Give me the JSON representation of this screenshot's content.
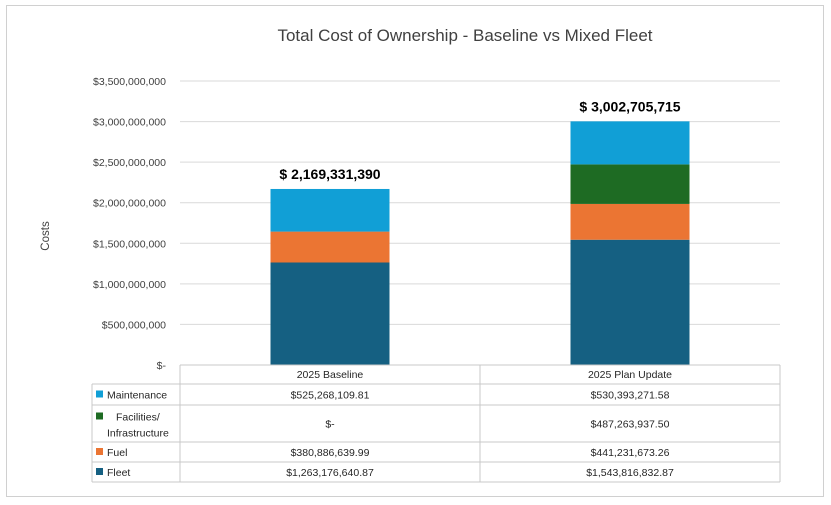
{
  "chart_data": {
    "type": "bar",
    "stacked": true,
    "title": "Total Cost of Ownership - Baseline vs Mixed Fleet",
    "xlabel": "",
    "ylabel": "Costs",
    "ylim": [
      0,
      3500000000
    ],
    "y_ticks": [
      0,
      500000000,
      1000000000,
      1500000000,
      2000000000,
      2500000000,
      3000000000,
      3500000000
    ],
    "y_tick_labels": [
      "$-",
      "$500,000,000",
      "$1,000,000,000",
      "$1,500,000,000",
      "$2,000,000,000",
      "$2,500,000,000",
      "$3,000,000,000",
      "$3,500,000,000"
    ],
    "grid": true,
    "categories": [
      "2025 Baseline",
      "2025 Plan Update"
    ],
    "totals": [
      "$  2,169,331,390",
      "$  3,002,705,715"
    ],
    "series": [
      {
        "name": "Maintenance",
        "color": "#119fd6",
        "values": [
          525268109.81,
          530393271.58
        ],
        "labels": [
          "$525,268,109.81",
          "$530,393,271.58"
        ]
      },
      {
        "name": "Facilities/ Infrastructure",
        "name_lines": [
          "Facilities/",
          "Infrastructure"
        ],
        "color": "#1e6b23",
        "values": [
          0,
          487263937.5
        ],
        "labels": [
          "$-",
          "$487,263,937.50"
        ]
      },
      {
        "name": "Fuel",
        "color": "#eb7533",
        "values": [
          380886639.99,
          441231673.26
        ],
        "labels": [
          "$380,886,639.99",
          "$441,231,673.26"
        ]
      },
      {
        "name": "Fleet",
        "color": "#156082",
        "values": [
          1263176640.87,
          1543816832.87
        ],
        "labels": [
          "$1,263,176,640.87",
          "$1,543,816,832.87"
        ]
      }
    ]
  }
}
